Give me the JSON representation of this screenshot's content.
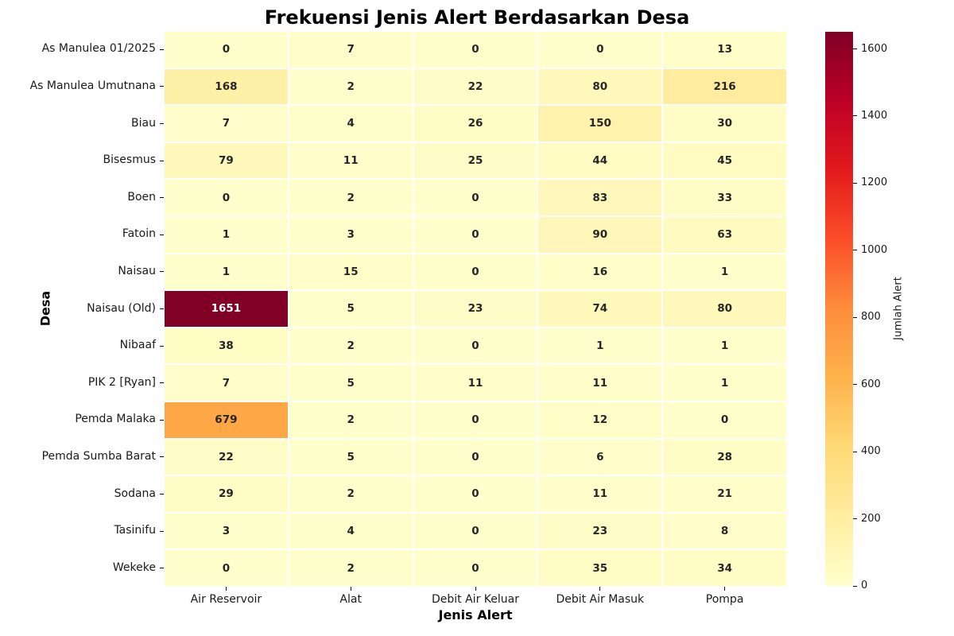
{
  "chart_data": {
    "type": "heatmap",
    "title": "Frekuensi Jenis Alert Berdasarkan Desa",
    "xlabel": "Jenis Alert",
    "ylabel": "Desa",
    "columns": [
      "Air Reservoir",
      "Alat",
      "Debit Air Keluar",
      "Debit Air Masuk",
      "Pompa"
    ],
    "rows": [
      "As Manulea 01/2025",
      "As Manulea Umutnana",
      "Biau",
      "Bisesmus",
      "Boen",
      "Fatoin",
      "Naisau",
      "Naisau (Old)",
      "Nibaaf",
      "PIK 2 [Ryan]",
      "Pemda Malaka",
      "Pemda Sumba Barat",
      "Sodana",
      "Tasinifu",
      "Wekeke"
    ],
    "values": [
      [
        0,
        7,
        0,
        0,
        13
      ],
      [
        168,
        2,
        22,
        80,
        216
      ],
      [
        7,
        4,
        26,
        150,
        30
      ],
      [
        79,
        11,
        25,
        44,
        45
      ],
      [
        0,
        2,
        0,
        83,
        33
      ],
      [
        1,
        3,
        0,
        90,
        63
      ],
      [
        1,
        15,
        0,
        16,
        1
      ],
      [
        1651,
        5,
        23,
        74,
        80
      ],
      [
        38,
        2,
        0,
        1,
        1
      ],
      [
        7,
        5,
        11,
        11,
        1
      ],
      [
        679,
        2,
        0,
        12,
        0
      ],
      [
        22,
        5,
        0,
        6,
        28
      ],
      [
        29,
        2,
        0,
        11,
        21
      ],
      [
        3,
        4,
        0,
        23,
        8
      ],
      [
        0,
        2,
        0,
        35,
        34
      ]
    ],
    "annotated": true,
    "grid": "off",
    "legend_position": "colorbar-right",
    "colorbar": {
      "label": "Jumlah Alert",
      "ticks": [
        0,
        200,
        400,
        600,
        800,
        1000,
        1200,
        1400,
        1600
      ],
      "vmin": 0,
      "vmax": 1651,
      "colormap": "YlOrRd",
      "colormap_stops": [
        "#ffffcc",
        "#ffeda0",
        "#fed976",
        "#feb24c",
        "#fd8d3c",
        "#fc4e2a",
        "#e31a1c",
        "#bd0026",
        "#800026"
      ]
    },
    "cell_line_color": "#ffffff",
    "annot_text_color_dark": "#262626",
    "annot_text_color_light": "#ffffff"
  }
}
